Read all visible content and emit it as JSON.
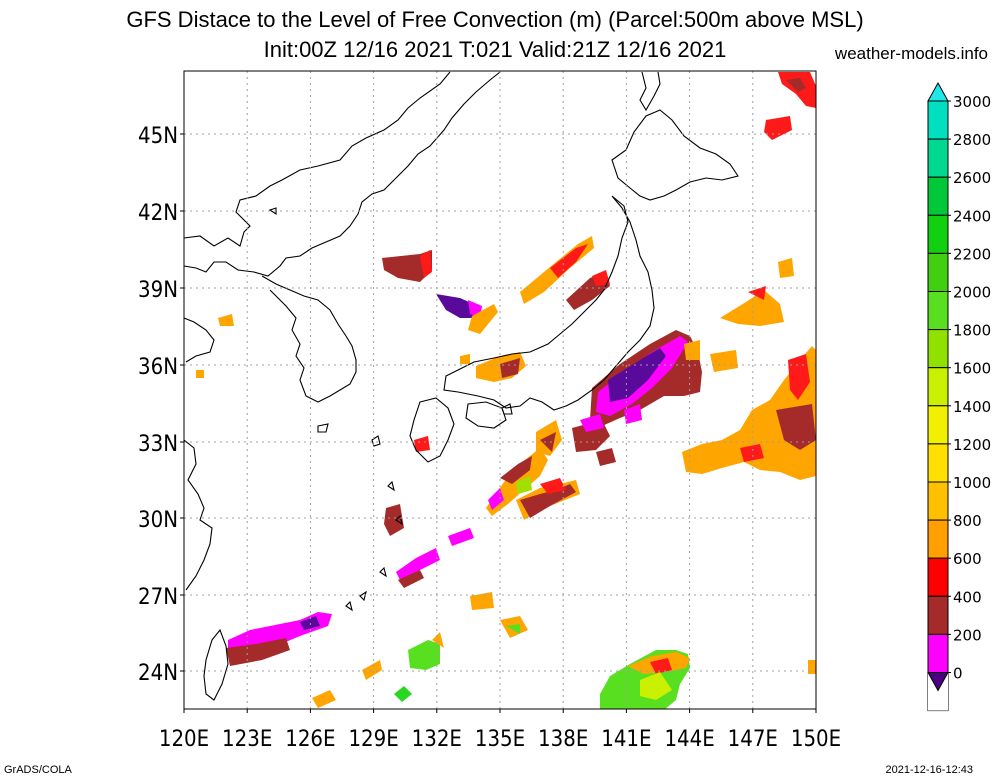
{
  "header": {
    "title_line1": "GFS Distace to the Level of Free Convection (m) (Parcel:500m above MSL)",
    "title_line2": "Init:00Z 12/16 2021 T:021 Valid:21Z 12/16 2021",
    "site": "weather-models.info"
  },
  "footer": {
    "left": "GrADS/COLA",
    "right": "2021-12-16-12:43"
  },
  "map": {
    "lat_labels": [
      "45N",
      "42N",
      "39N",
      "36N",
      "33N",
      "30N",
      "27N",
      "24N"
    ],
    "lon_labels": [
      "120E",
      "123E",
      "126E",
      "129E",
      "132E",
      "135E",
      "138E",
      "141E",
      "144E",
      "147E",
      "150E"
    ],
    "colors": {
      "dark_purple": "#5a0a9a",
      "magenta": "#ff00ff",
      "brown": "#a52a2a",
      "red": "#ff1a1a",
      "orange": "#ffa500",
      "light_orange": "#ffc020",
      "yellow_green": "#a0e000",
      "green": "#28d820"
    }
  },
  "colorbar": {
    "labels": [
      "3000",
      "2800",
      "2600",
      "2400",
      "2200",
      "2000",
      "1800",
      "1600",
      "1400",
      "1200",
      "1000",
      "800",
      "600",
      "400",
      "200",
      "0"
    ],
    "colors": [
      "#00e0c0",
      "#00d890",
      "#00c838",
      "#10d010",
      "#40d010",
      "#58e020",
      "#90e000",
      "#c8f000",
      "#f0f000",
      "#ffe000",
      "#ffc000",
      "#ffa000",
      "#ff0000",
      "#a52a2a",
      "#ff00ff",
      "#5a0a9a"
    ],
    "top_arrow_color": "#20e8e8",
    "bottom_arrow_color": "#4a0080"
  }
}
